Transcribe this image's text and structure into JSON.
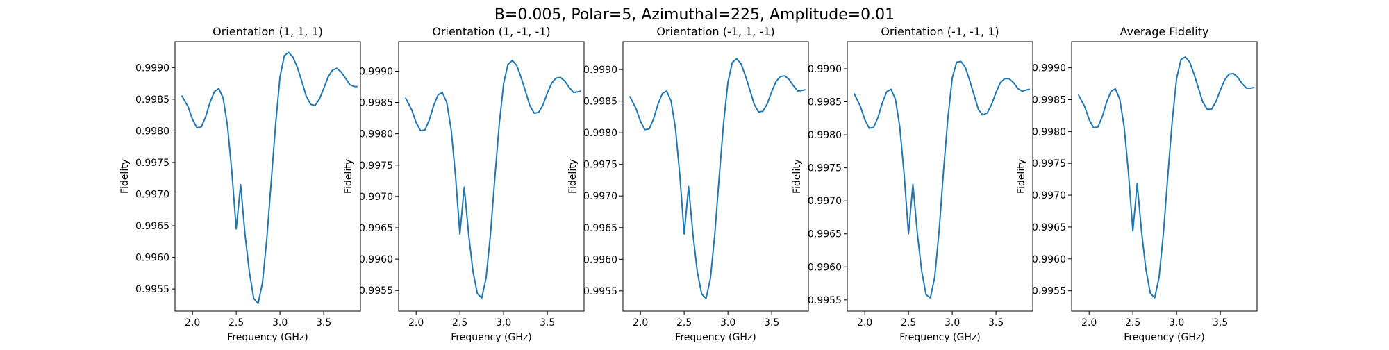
{
  "figure": {
    "suptitle": "B=0.005, Polar=5, Azimuthal=225, Amplitude=0.01"
  },
  "chart_data": [
    {
      "type": "line",
      "title": "Orientation (1, 1, 1)",
      "xlabel": "Frequency (GHz)",
      "ylabel": "Fidelity",
      "xlim": [
        1.8,
        3.92
      ],
      "ylim": [
        0.99515,
        0.99941
      ],
      "xticks": [
        "2.0",
        "2.5",
        "3.0",
        "3.5"
      ],
      "yticks": [
        "0.9955",
        "0.9960",
        "0.9965",
        "0.9970",
        "0.9975",
        "0.9980",
        "0.9985",
        "0.9990"
      ],
      "color": "#1f77b4",
      "grid": false,
      "series": [
        {
          "x": [
            1.88,
            1.95,
            2.0,
            2.05,
            2.1,
            2.15,
            2.2,
            2.25,
            2.3,
            2.35,
            2.4,
            2.45,
            2.5,
            2.55,
            2.6,
            2.65,
            2.7,
            2.75,
            2.8,
            2.85,
            2.9,
            2.95,
            3.0,
            3.05,
            3.1,
            3.15,
            3.2,
            3.25,
            3.3,
            3.35,
            3.4,
            3.45,
            3.5,
            3.55,
            3.6,
            3.65,
            3.7,
            3.75,
            3.8,
            3.85,
            3.88
          ],
          "y": [
            0.99855,
            0.99838,
            0.99818,
            0.99805,
            0.99806,
            0.99822,
            0.99845,
            0.99862,
            0.99867,
            0.99852,
            0.99808,
            0.99735,
            0.99645,
            0.99715,
            0.99637,
            0.99577,
            0.99535,
            0.99527,
            0.9956,
            0.9963,
            0.9972,
            0.9981,
            0.99885,
            0.99919,
            0.99924,
            0.99916,
            0.999,
            0.99878,
            0.99855,
            0.99842,
            0.9984,
            0.9985,
            0.99867,
            0.99885,
            0.99896,
            0.99899,
            0.99893,
            0.99883,
            0.99873,
            0.9987,
            0.9987
          ]
        }
      ]
    },
    {
      "type": "line",
      "title": "Orientation (1, -1, -1)",
      "xlabel": "Frequency (GHz)",
      "ylabel": "Fidelity",
      "xlim": [
        1.8,
        3.92
      ],
      "ylim": [
        0.99517,
        0.99947
      ],
      "xticks": [
        "2.0",
        "2.5",
        "3.0",
        "3.5"
      ],
      "yticks": [
        "0.9955",
        "0.9960",
        "0.9965",
        "0.9970",
        "0.9975",
        "0.9980",
        "0.9985",
        "0.9990"
      ],
      "color": "#1f77b4",
      "grid": false,
      "series": [
        {
          "x": [
            1.88,
            1.95,
            2.0,
            2.05,
            2.1,
            2.15,
            2.2,
            2.25,
            2.3,
            2.35,
            2.4,
            2.45,
            2.5,
            2.55,
            2.6,
            2.65,
            2.7,
            2.75,
            2.8,
            2.85,
            2.9,
            2.95,
            3.0,
            3.05,
            3.1,
            3.15,
            3.2,
            3.25,
            3.3,
            3.35,
            3.4,
            3.45,
            3.5,
            3.55,
            3.6,
            3.65,
            3.7,
            3.75,
            3.8,
            3.85,
            3.88
          ],
          "y": [
            0.99857,
            0.99838,
            0.99818,
            0.99805,
            0.99806,
            0.99822,
            0.99845,
            0.99862,
            0.99866,
            0.9985,
            0.99807,
            0.99733,
            0.9964,
            0.99715,
            0.9964,
            0.9958,
            0.99545,
            0.99538,
            0.9957,
            0.9964,
            0.9973,
            0.99815,
            0.9988,
            0.99911,
            0.99917,
            0.99909,
            0.9989,
            0.99868,
            0.99845,
            0.99833,
            0.99834,
            0.99846,
            0.99865,
            0.99881,
            0.99889,
            0.9989,
            0.99884,
            0.99874,
            0.99866,
            0.99867,
            0.99868
          ]
        }
      ]
    },
    {
      "type": "line",
      "title": "Orientation (-1, 1, -1)",
      "xlabel": "Frequency (GHz)",
      "ylabel": "Fidelity",
      "xlim": [
        1.8,
        3.92
      ],
      "ylim": [
        0.99518,
        0.99944
      ],
      "xticks": [
        "2.0",
        "2.5",
        "3.0",
        "3.5"
      ],
      "yticks": [
        "0.9955",
        "0.9960",
        "0.9965",
        "0.9970",
        "0.9975",
        "0.9980",
        "0.9985",
        "0.9990"
      ],
      "color": "#1f77b4",
      "grid": false,
      "series": [
        {
          "x": [
            1.88,
            1.95,
            2.0,
            2.05,
            2.1,
            2.15,
            2.2,
            2.25,
            2.3,
            2.35,
            2.4,
            2.45,
            2.5,
            2.55,
            2.6,
            2.65,
            2.7,
            2.75,
            2.8,
            2.85,
            2.9,
            2.95,
            3.0,
            3.05,
            3.1,
            3.15,
            3.2,
            3.25,
            3.3,
            3.35,
            3.4,
            3.45,
            3.5,
            3.55,
            3.6,
            3.65,
            3.7,
            3.75,
            3.8,
            3.85,
            3.88
          ],
          "y": [
            0.99857,
            0.99838,
            0.99818,
            0.99805,
            0.99806,
            0.99822,
            0.99845,
            0.99862,
            0.99866,
            0.9985,
            0.99807,
            0.99733,
            0.9964,
            0.99715,
            0.9964,
            0.9958,
            0.99545,
            0.99538,
            0.9957,
            0.9964,
            0.9973,
            0.99815,
            0.9988,
            0.99911,
            0.99917,
            0.99909,
            0.9989,
            0.99868,
            0.99845,
            0.99833,
            0.99834,
            0.99846,
            0.99865,
            0.99881,
            0.99889,
            0.9989,
            0.99884,
            0.99874,
            0.99866,
            0.99867,
            0.99868
          ]
        }
      ]
    },
    {
      "type": "line",
      "title": "Orientation (-1, -1, 1)",
      "xlabel": "Frequency (GHz)",
      "ylabel": "Fidelity",
      "xlim": [
        1.8,
        3.92
      ],
      "ylim": [
        0.99533,
        0.99941
      ],
      "xticks": [
        "2.0",
        "2.5",
        "3.0",
        "3.5"
      ],
      "yticks": [
        "0.9955",
        "0.9960",
        "0.9965",
        "0.9970",
        "0.9975",
        "0.9980",
        "0.9985",
        "0.9990"
      ],
      "color": "#1f77b4",
      "grid": false,
      "series": [
        {
          "x": [
            1.88,
            1.95,
            2.0,
            2.05,
            2.1,
            2.15,
            2.2,
            2.25,
            2.3,
            2.35,
            2.4,
            2.45,
            2.5,
            2.55,
            2.6,
            2.65,
            2.7,
            2.75,
            2.8,
            2.85,
            2.9,
            2.95,
            3.0,
            3.05,
            3.1,
            3.15,
            3.2,
            3.25,
            3.3,
            3.35,
            3.4,
            3.45,
            3.5,
            3.55,
            3.6,
            3.65,
            3.7,
            3.75,
            3.8,
            3.85,
            3.88
          ],
          "y": [
            0.99862,
            0.99843,
            0.99823,
            0.9981,
            0.99811,
            0.99826,
            0.99848,
            0.99865,
            0.99869,
            0.99854,
            0.99812,
            0.9974,
            0.9965,
            0.99725,
            0.99652,
            0.99594,
            0.99558,
            0.99553,
            0.99585,
            0.99655,
            0.99745,
            0.99825,
            0.99886,
            0.9991,
            0.99911,
            0.99902,
            0.99882,
            0.9986,
            0.99838,
            0.9983,
            0.99833,
            0.99846,
            0.99864,
            0.99879,
            0.99885,
            0.99885,
            0.99879,
            0.9987,
            0.99866,
            0.99868,
            0.99869
          ]
        }
      ]
    },
    {
      "type": "line",
      "title": "Average Fidelity",
      "xlabel": "Frequency (GHz)",
      "ylabel": "Fidelity",
      "xlim": [
        1.8,
        3.92
      ],
      "ylim": [
        0.99518,
        0.99941
      ],
      "xticks": [
        "2.0",
        "2.5",
        "3.0",
        "3.5"
      ],
      "yticks": [
        "0.9955",
        "0.9960",
        "0.9965",
        "0.9970",
        "0.9975",
        "0.9980",
        "0.9985",
        "0.9990"
      ],
      "color": "#1f77b4",
      "grid": false,
      "series": [
        {
          "x": [
            1.88,
            1.95,
            2.0,
            2.05,
            2.1,
            2.15,
            2.2,
            2.25,
            2.3,
            2.35,
            2.4,
            2.45,
            2.5,
            2.55,
            2.6,
            2.65,
            2.7,
            2.75,
            2.8,
            2.85,
            2.9,
            2.95,
            3.0,
            3.05,
            3.1,
            3.15,
            3.2,
            3.25,
            3.3,
            3.35,
            3.4,
            3.45,
            3.5,
            3.55,
            3.6,
            3.65,
            3.7,
            3.75,
            3.8,
            3.85,
            3.88
          ],
          "y": [
            0.99857,
            0.99839,
            0.99819,
            0.99806,
            0.99807,
            0.99823,
            0.99846,
            0.99863,
            0.99867,
            0.99851,
            0.99808,
            0.99735,
            0.99644,
            0.99718,
            0.99642,
            0.99583,
            0.99546,
            0.99539,
            0.99571,
            0.99641,
            0.99731,
            0.99816,
            0.99883,
            0.99913,
            0.99917,
            0.99909,
            0.9989,
            0.99868,
            0.99846,
            0.99835,
            0.99835,
            0.99847,
            0.99865,
            0.99881,
            0.9989,
            0.99891,
            0.99885,
            0.99875,
            0.99868,
            0.99868,
            0.99869
          ]
        }
      ]
    }
  ]
}
